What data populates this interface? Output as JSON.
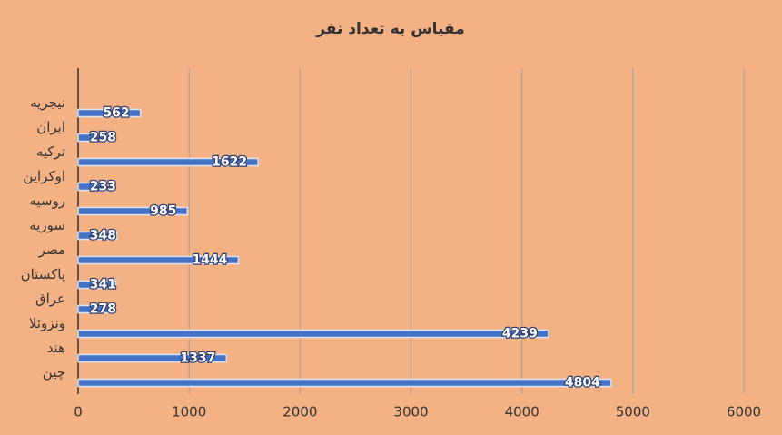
{
  "chart_data": {
    "type": "bar",
    "orientation": "horizontal",
    "title": "مقیاس به تعداد نفر",
    "categories": [
      "نیجریه",
      "ایران",
      "ترکیه",
      "اوکراین",
      "روسیه",
      "سوریه",
      "مصر",
      "پاکستان",
      "عراق",
      "ونزوئلا",
      "هند",
      "چین"
    ],
    "values": [
      562,
      258,
      1622,
      233,
      985,
      348,
      1444,
      341,
      278,
      4239,
      1337,
      4804
    ],
    "color": "#4472c4",
    "xlim": [
      0,
      6000
    ],
    "xticks": [
      0,
      1000,
      2000,
      3000,
      4000,
      5000,
      6000
    ],
    "grid": true
  }
}
